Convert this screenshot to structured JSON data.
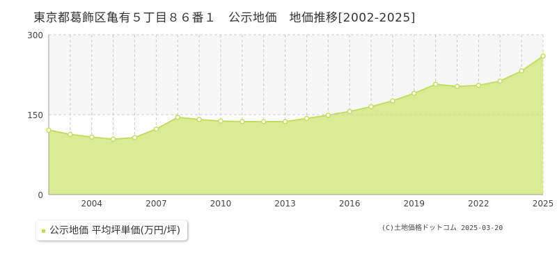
{
  "title": "東京都葛飾区亀有５丁目８６番１　公示地価　地価推移[2002-2025]",
  "legend_label": "公示地価 平均坪単価(万円/坪)",
  "copyright": "(C)土地価格ドットコム 2025-03-20",
  "colors": {
    "area_fill": "#dbeb94",
    "line": "#c2dd63",
    "marker_fill": "#ffffff",
    "marker_stroke": "#c2dd63",
    "legend_marker": "#bfdc55",
    "grid": "#cccccc",
    "axis": "#999999",
    "plot_bg_band": "#f7f7f7"
  },
  "chart_data": {
    "type": "area",
    "x": [
      2002,
      2003,
      2004,
      2005,
      2006,
      2007,
      2008,
      2009,
      2010,
      2011,
      2012,
      2013,
      2014,
      2015,
      2016,
      2017,
      2018,
      2019,
      2020,
      2021,
      2022,
      2023,
      2024,
      2025
    ],
    "series": [
      {
        "name": "公示地価 平均坪単価(万円/坪)",
        "values": [
          121,
          113,
          108,
          104,
          107,
          123,
          145,
          141,
          138,
          137,
          137,
          137,
          143,
          149,
          156,
          165,
          176,
          190,
          207,
          203,
          205,
          213,
          232,
          260
        ]
      }
    ],
    "ylim": [
      0,
      300
    ],
    "yticks": [
      0,
      150,
      300
    ],
    "xticks": [
      2004,
      2007,
      2010,
      2013,
      2016,
      2019,
      2022,
      2025
    ],
    "xlim": [
      2002,
      2025
    ],
    "grid": true,
    "legend": "bottom-left"
  }
}
